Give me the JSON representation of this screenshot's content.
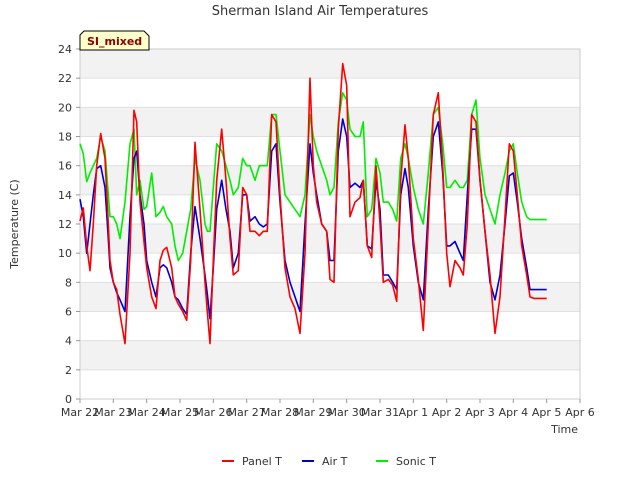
{
  "chart_data": {
    "type": "line",
    "title": "Sherman Island Air Temperatures",
    "xlabel": "Time",
    "ylabel": "Temperature (C)",
    "badge": "SI_mixed",
    "ylim": [
      0,
      24
    ],
    "yticks": [
      0,
      2,
      4,
      6,
      8,
      10,
      12,
      14,
      16,
      18,
      20,
      22,
      24
    ],
    "xlim": [
      0,
      15
    ],
    "xticks": [
      "Mar 22",
      "Mar 23",
      "Mar 24",
      "Mar 25",
      "Mar 26",
      "Mar 27",
      "Mar 28",
      "Mar 29",
      "Mar 30",
      "Mar 31",
      "Apr 1",
      "Apr 2",
      "Apr 3",
      "Apr 4",
      "Apr 5",
      "Apr 6"
    ],
    "grid": true,
    "legend_position": "bottom",
    "series": [
      {
        "name": "Panel T",
        "color": "#ff0000",
        "x": [
          0.0,
          0.1,
          0.2,
          0.3,
          0.4,
          0.5,
          0.62,
          0.75,
          0.85,
          0.9,
          1.0,
          1.1,
          1.2,
          1.35,
          1.5,
          1.62,
          1.7,
          1.8,
          1.92,
          2.0,
          2.15,
          2.28,
          2.4,
          2.5,
          2.6,
          2.75,
          2.85,
          2.95,
          3.08,
          3.2,
          3.32,
          3.45,
          3.6,
          3.75,
          3.82,
          3.9,
          4.0,
          4.1,
          4.25,
          4.38,
          4.5,
          4.6,
          4.75,
          4.88,
          5.0,
          5.1,
          5.25,
          5.38,
          5.5,
          5.62,
          5.75,
          5.88,
          6.0,
          6.15,
          6.3,
          6.45,
          6.6,
          6.75,
          6.9,
          7.0,
          7.1,
          7.25,
          7.4,
          7.5,
          7.62,
          7.75,
          7.88,
          8.0,
          8.1,
          8.25,
          8.4,
          8.5,
          8.62,
          8.75,
          8.88,
          9.0,
          9.1,
          9.25,
          9.38,
          9.5,
          9.62,
          9.75,
          9.85,
          10.0,
          10.15,
          10.3,
          10.45,
          10.6,
          10.75,
          10.88,
          11.0,
          11.1,
          11.25,
          11.4,
          11.5,
          11.62,
          11.75,
          11.88,
          12.0,
          12.15,
          12.3,
          12.45,
          12.6,
          12.75,
          12.88,
          13.0,
          13.12,
          13.25,
          13.4,
          13.5,
          13.62,
          13.75,
          13.85,
          14.0
        ],
        "values": [
          12.2,
          13.1,
          10.5,
          8.8,
          12.0,
          16.0,
          18.2,
          16.5,
          12.0,
          9.5,
          8.0,
          7.5,
          5.8,
          3.8,
          10.0,
          19.8,
          19.0,
          13.5,
          10.8,
          9.0,
          7.0,
          6.2,
          9.5,
          10.2,
          10.4,
          9.0,
          7.0,
          6.5,
          6.0,
          5.4,
          9.5,
          17.6,
          13.0,
          8.0,
          6.0,
          3.8,
          9.5,
          15.0,
          18.5,
          15.0,
          11.0,
          8.5,
          8.8,
          14.5,
          14.0,
          11.5,
          11.5,
          11.2,
          11.5,
          11.5,
          19.5,
          19.0,
          14.0,
          9.0,
          7.0,
          6.2,
          4.5,
          10.0,
          22.0,
          16.0,
          13.5,
          12.0,
          11.5,
          8.2,
          8.0,
          18.5,
          23.0,
          21.5,
          12.5,
          13.5,
          13.8,
          15.0,
          10.5,
          9.7,
          16.0,
          12.0,
          8.0,
          8.2,
          7.8,
          6.7,
          15.0,
          18.8,
          16.5,
          11.0,
          8.2,
          4.7,
          12.0,
          19.5,
          21.0,
          16.0,
          10.0,
          7.7,
          9.5,
          9.0,
          8.5,
          12.0,
          19.5,
          19.0,
          15.0,
          11.5,
          8.5,
          4.5,
          7.0,
          12.5,
          17.5,
          17.0,
          14.0,
          10.5,
          8.5,
          7.0,
          6.9,
          6.9,
          6.9,
          6.9
        ]
      },
      {
        "name": "Air T",
        "color": "#0000cc",
        "x": [
          0.0,
          0.1,
          0.2,
          0.3,
          0.4,
          0.5,
          0.62,
          0.75,
          0.85,
          0.9,
          1.0,
          1.1,
          1.2,
          1.35,
          1.5,
          1.62,
          1.7,
          1.8,
          1.92,
          2.0,
          2.15,
          2.28,
          2.4,
          2.5,
          2.6,
          2.75,
          2.85,
          2.95,
          3.08,
          3.2,
          3.32,
          3.45,
          3.6,
          3.75,
          3.82,
          3.9,
          4.0,
          4.1,
          4.25,
          4.38,
          4.5,
          4.6,
          4.75,
          4.88,
          5.0,
          5.1,
          5.25,
          5.38,
          5.5,
          5.62,
          5.75,
          5.88,
          6.0,
          6.15,
          6.3,
          6.45,
          6.6,
          6.75,
          6.9,
          7.0,
          7.1,
          7.25,
          7.4,
          7.5,
          7.62,
          7.75,
          7.88,
          8.0,
          8.1,
          8.25,
          8.4,
          8.5,
          8.62,
          8.75,
          8.88,
          9.0,
          9.1,
          9.25,
          9.38,
          9.5,
          9.62,
          9.75,
          9.85,
          10.0,
          10.15,
          10.3,
          10.45,
          10.6,
          10.75,
          10.88,
          11.0,
          11.1,
          11.25,
          11.4,
          11.5,
          11.62,
          11.75,
          11.88,
          12.0,
          12.15,
          12.3,
          12.45,
          12.6,
          12.75,
          12.88,
          13.0,
          13.12,
          13.25,
          13.4,
          13.5,
          13.62,
          13.75,
          13.85,
          14.0
        ],
        "values": [
          13.7,
          12.5,
          10.0,
          12.0,
          14.0,
          15.8,
          16.0,
          14.5,
          11.0,
          9.0,
          8.0,
          7.3,
          6.8,
          6.0,
          12.5,
          16.5,
          17.0,
          14.0,
          12.0,
          9.5,
          8.0,
          7.0,
          9.0,
          9.2,
          9.0,
          8.0,
          7.0,
          6.8,
          6.2,
          5.8,
          10.0,
          13.2,
          11.0,
          8.5,
          7.2,
          5.5,
          9.0,
          13.0,
          15.0,
          13.0,
          11.5,
          9.0,
          10.0,
          14.0,
          14.0,
          12.2,
          12.5,
          12.0,
          11.8,
          12.0,
          17.0,
          17.5,
          13.5,
          9.5,
          8.0,
          7.0,
          6.0,
          12.0,
          17.5,
          15.5,
          14.0,
          12.0,
          11.5,
          9.5,
          9.5,
          17.0,
          19.2,
          18.0,
          14.5,
          14.8,
          14.5,
          15.0,
          10.5,
          10.3,
          15.0,
          13.0,
          8.5,
          8.5,
          8.0,
          7.5,
          14.0,
          15.8,
          14.5,
          10.5,
          8.0,
          6.8,
          13.0,
          18.0,
          19.0,
          15.5,
          10.5,
          10.5,
          10.8,
          10.0,
          9.5,
          14.0,
          18.5,
          18.5,
          15.0,
          11.5,
          8.0,
          6.8,
          8.5,
          12.0,
          15.3,
          15.5,
          13.5,
          11.0,
          9.0,
          7.5,
          7.5,
          7.5,
          7.5,
          7.5
        ]
      },
      {
        "name": "Sonic T",
        "color": "#00ee00",
        "x": [
          0.0,
          0.1,
          0.2,
          0.3,
          0.4,
          0.5,
          0.62,
          0.75,
          0.85,
          0.9,
          1.0,
          1.1,
          1.2,
          1.35,
          1.5,
          1.62,
          1.7,
          1.8,
          1.92,
          2.0,
          2.15,
          2.28,
          2.4,
          2.5,
          2.6,
          2.75,
          2.85,
          2.95,
          3.08,
          3.2,
          3.32,
          3.45,
          3.6,
          3.75,
          3.82,
          3.9,
          4.0,
          4.1,
          4.25,
          4.38,
          4.5,
          4.6,
          4.75,
          4.88,
          5.0,
          5.1,
          5.25,
          5.38,
          5.5,
          5.62,
          5.75,
          5.88,
          6.0,
          6.15,
          6.3,
          6.45,
          6.6,
          6.75,
          6.9,
          7.0,
          7.1,
          7.25,
          7.4,
          7.5,
          7.62,
          7.75,
          7.88,
          8.0,
          8.1,
          8.25,
          8.4,
          8.5,
          8.62,
          8.75,
          8.88,
          9.0,
          9.1,
          9.25,
          9.38,
          9.5,
          9.62,
          9.75,
          9.85,
          10.0,
          10.15,
          10.3,
          10.45,
          10.6,
          10.75,
          10.88,
          11.0,
          11.1,
          11.25,
          11.4,
          11.5,
          11.62,
          11.75,
          11.88,
          12.0,
          12.15,
          12.3,
          12.45,
          12.6,
          12.75,
          12.88,
          13.0,
          13.12,
          13.25,
          13.4,
          13.5,
          13.62,
          13.75,
          13.85,
          14.0
        ],
        "values": [
          17.5,
          16.8,
          14.9,
          15.5,
          16.0,
          16.5,
          18.0,
          17.0,
          14.0,
          12.5,
          12.5,
          12.0,
          11.0,
          13.5,
          17.5,
          18.5,
          14.0,
          15.0,
          13.0,
          13.2,
          15.5,
          12.5,
          12.8,
          13.2,
          12.5,
          12.0,
          10.5,
          9.5,
          10.0,
          11.5,
          13.0,
          16.5,
          15.0,
          12.0,
          11.5,
          11.5,
          14.5,
          17.5,
          17.0,
          16.0,
          15.0,
          14.0,
          14.5,
          16.5,
          16.0,
          16.0,
          15.0,
          16.0,
          16.0,
          16.0,
          19.5,
          19.5,
          17.0,
          14.0,
          13.5,
          13.0,
          12.5,
          14.0,
          19.5,
          18.0,
          17.0,
          16.0,
          15.0,
          14.0,
          14.5,
          19.0,
          21.0,
          20.5,
          18.5,
          18.0,
          18.0,
          19.0,
          12.5,
          13.0,
          16.5,
          15.5,
          13.5,
          13.5,
          13.0,
          12.2,
          16.5,
          17.5,
          16.5,
          14.5,
          13.0,
          12.0,
          15.5,
          19.5,
          20.0,
          17.5,
          14.5,
          14.5,
          15.0,
          14.5,
          14.5,
          15.0,
          19.5,
          20.5,
          16.5,
          14.0,
          13.0,
          12.0,
          14.0,
          15.5,
          17.0,
          17.5,
          15.5,
          13.5,
          12.5,
          12.3,
          12.3,
          12.3,
          12.3,
          12.3
        ]
      }
    ]
  }
}
